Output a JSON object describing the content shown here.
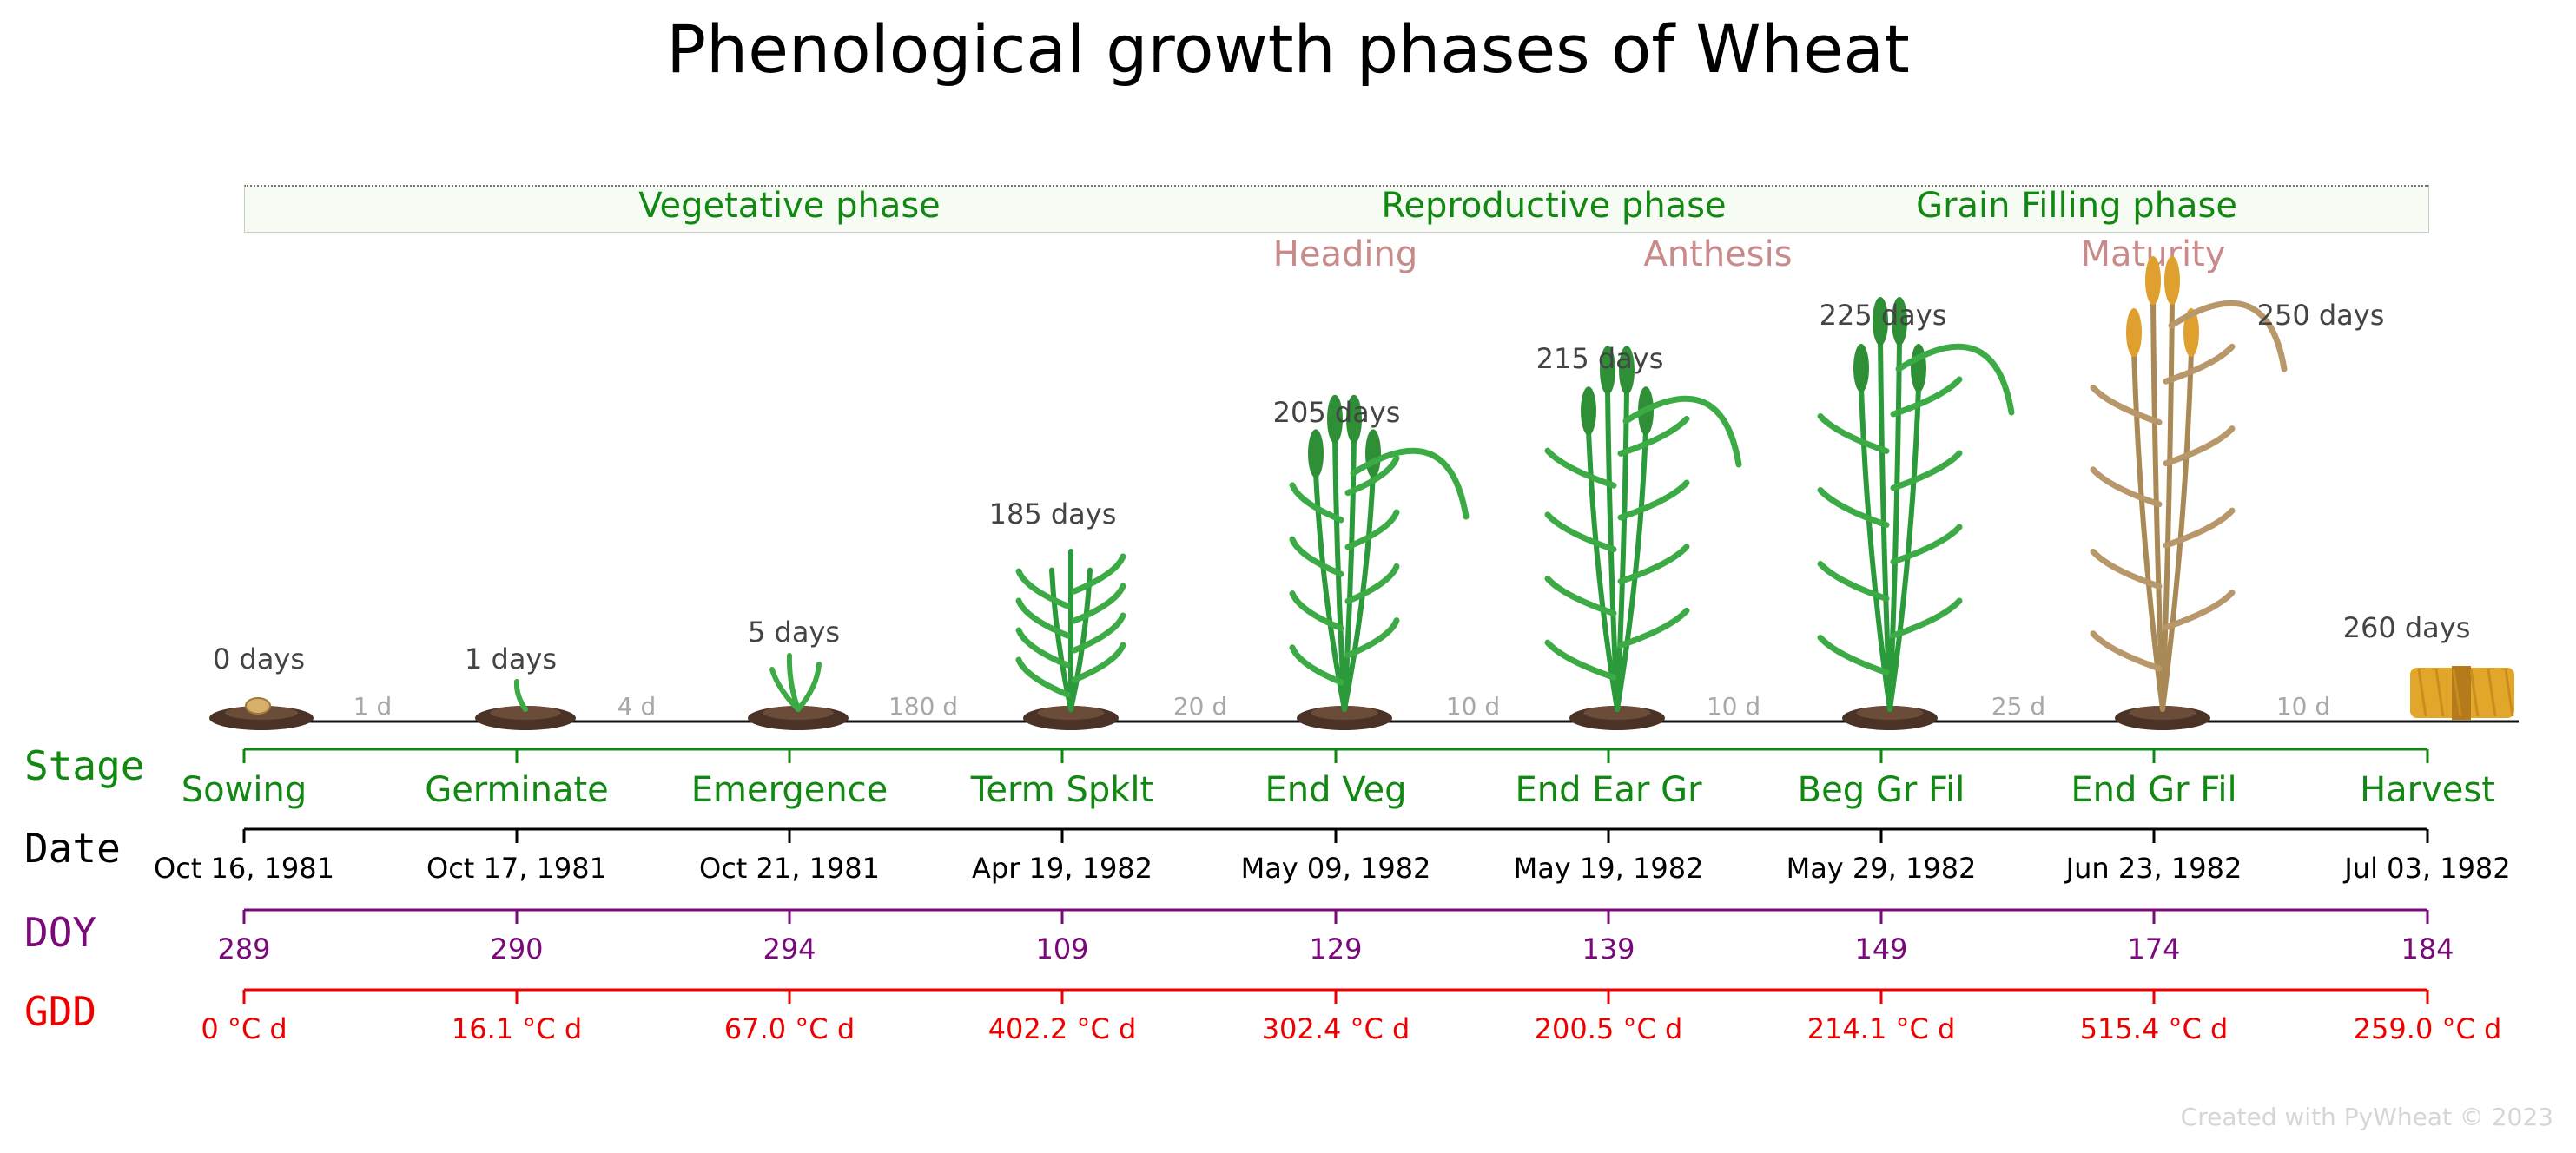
{
  "title": "Phenological growth phases of Wheat",
  "phases": [
    {
      "label": "Vegetative phase"
    },
    {
      "label": "Reproductive phase"
    },
    {
      "label": "Grain Filling phase"
    }
  ],
  "subphases": [
    {
      "label": "Heading"
    },
    {
      "label": "Anthesis"
    },
    {
      "label": "Maturity"
    }
  ],
  "row_labels": {
    "stage": "Stage",
    "date": "Date",
    "doy": "DOY",
    "gdd": "GDD"
  },
  "stages": [
    {
      "name": "Sowing",
      "date": "Oct 16, 1981",
      "doy": "289",
      "gdd": "0 °C d",
      "days": "0 days"
    },
    {
      "name": "Germinate",
      "date": "Oct 17, 1981",
      "doy": "290",
      "gdd": "16.1 °C d",
      "days": "1 days"
    },
    {
      "name": "Emergence",
      "date": "Oct 21, 1981",
      "doy": "294",
      "gdd": "67.0 °C d",
      "days": "5 days"
    },
    {
      "name": "Term Spklt",
      "date": "Apr 19, 1982",
      "doy": "109",
      "gdd": "402.2 °C d",
      "days": "185 days"
    },
    {
      "name": "End Veg",
      "date": "May 09, 1982",
      "doy": "129",
      "gdd": "302.4 °C d",
      "days": "205 days"
    },
    {
      "name": "End Ear Gr",
      "date": "May 19, 1982",
      "doy": "139",
      "gdd": "200.5 °C d",
      "days": "215 days"
    },
    {
      "name": "Beg Gr Fil",
      "date": "May 29, 1982",
      "doy": "149",
      "gdd": "214.1 °C d",
      "days": "225 days"
    },
    {
      "name": "End Gr Fil",
      "date": "Jun 23, 1982",
      "doy": "174",
      "gdd": "515.4 °C d",
      "days": "250 days"
    },
    {
      "name": "Harvest",
      "date": "Jul 03, 1982",
      "doy": "184",
      "gdd": "259.0 °C d",
      "days": "260 days"
    }
  ],
  "intervals": [
    "1 d",
    "4 d",
    "180 d",
    "20 d",
    "10 d",
    "10 d",
    "25 d",
    "10 d"
  ],
  "footer": "Created with PyWheat © 2023",
  "colors": {
    "stage": "#118811",
    "date": "#000000",
    "doy": "#7a0a7a",
    "gdd": "#ee0000",
    "subphase": "#c98a8a",
    "interval": "#a8a8a8"
  }
}
